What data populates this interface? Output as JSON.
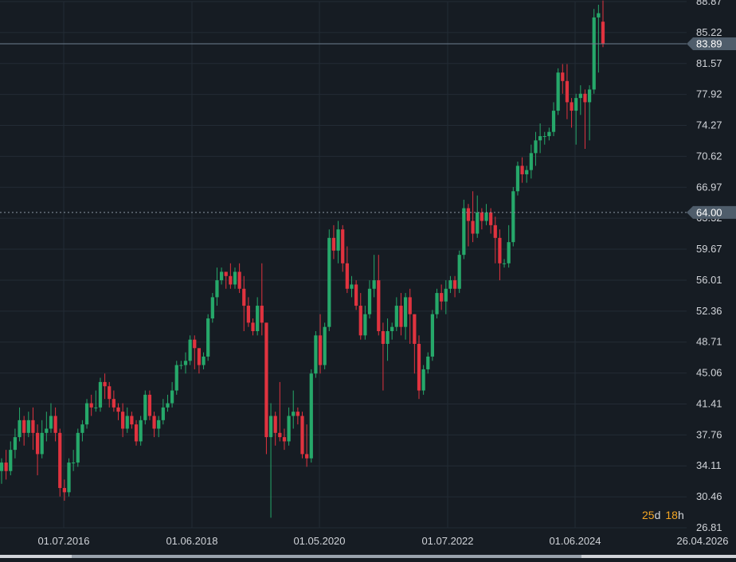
{
  "colors": {
    "background": "#161c23",
    "grid": "#232b35",
    "axis_text": "#d1d4d9",
    "bull": "#26a86a",
    "bear": "#e0333f",
    "last_price_line": "#6d7f8f",
    "crosshair_line": "#8a96a3",
    "label_bg": "#4f5d6b",
    "countdown": "#f5a623"
  },
  "countdown": {
    "days_value": "25",
    "days_unit": "d",
    "hours_value": "18",
    "hours_unit": "h"
  },
  "chart_data": {
    "type": "candlestick",
    "ylim": [
      26.81,
      88.87
    ],
    "y_ticks": [
      "88.87",
      "85.22",
      "81.57",
      "77.92",
      "74.27",
      "70.62",
      "66.97",
      "63.32",
      "59.67",
      "56.01",
      "52.36",
      "48.71",
      "45.06",
      "41.41",
      "37.76",
      "34.11",
      "30.46",
      "26.81"
    ],
    "x_ticks": [
      "01.07.2016",
      "01.06.2018",
      "01.05.2020",
      "01.07.2022",
      "01.06.2024",
      "26.04.2026"
    ],
    "last_price": 83.89,
    "last_price_label": "83.89",
    "crosshair_price": 64.0,
    "crosshair_label": "64.00",
    "grid": true,
    "candles": [
      [
        33.5,
        34.5,
        32.0,
        35.0
      ],
      [
        34.5,
        33.5,
        32.5,
        36.0
      ],
      [
        33.5,
        36.0,
        33.0,
        37.0
      ],
      [
        36.0,
        37.5,
        35.0,
        38.5
      ],
      [
        37.5,
        39.5,
        37.0,
        41.0
      ],
      [
        39.5,
        38.0,
        36.5,
        40.0
      ],
      [
        38.0,
        39.5,
        37.5,
        40.5
      ],
      [
        39.5,
        38.0,
        36.0,
        41.0
      ],
      [
        38.0,
        35.5,
        33.0,
        39.0
      ],
      [
        35.5,
        38.0,
        35.0,
        39.5
      ],
      [
        38.0,
        38.5,
        37.0,
        40.5
      ],
      [
        38.5,
        40.0,
        38.0,
        41.5
      ],
      [
        40.0,
        38.0,
        37.0,
        41.0
      ],
      [
        38.0,
        31.5,
        30.5,
        38.5
      ],
      [
        31.5,
        31.0,
        30.0,
        32.5
      ],
      [
        31.0,
        34.5,
        30.5,
        35.0
      ],
      [
        34.5,
        34.5,
        33.5,
        36.0
      ],
      [
        34.5,
        38.0,
        34.0,
        38.5
      ],
      [
        38.0,
        39.0,
        37.0,
        39.5
      ],
      [
        39.0,
        41.5,
        38.5,
        42.0
      ],
      [
        41.5,
        41.0,
        40.0,
        42.5
      ],
      [
        41.0,
        41.0,
        40.5,
        43.0
      ],
      [
        41.0,
        44.0,
        40.5,
        44.5
      ],
      [
        44.0,
        43.5,
        42.0,
        45.0
      ],
      [
        43.5,
        42.0,
        41.0,
        44.0
      ],
      [
        42.0,
        41.0,
        40.5,
        43.0
      ],
      [
        41.0,
        40.5,
        39.5,
        41.5
      ],
      [
        40.5,
        38.5,
        37.5,
        41.5
      ],
      [
        38.5,
        40.0,
        38.0,
        41.0
      ],
      [
        40.0,
        39.0,
        38.5,
        40.5
      ],
      [
        39.0,
        37.0,
        36.5,
        39.5
      ],
      [
        37.0,
        39.5,
        36.5,
        40.0
      ],
      [
        39.5,
        42.5,
        39.0,
        43.0
      ],
      [
        42.5,
        40.0,
        39.5,
        43.0
      ],
      [
        40.0,
        38.5,
        37.5,
        40.5
      ],
      [
        38.5,
        39.5,
        37.5,
        40.0
      ],
      [
        39.5,
        41.0,
        39.0,
        42.0
      ],
      [
        41.0,
        41.5,
        40.5,
        42.5
      ],
      [
        41.5,
        43.0,
        41.0,
        44.0
      ],
      [
        43.0,
        46.0,
        42.5,
        46.5
      ],
      [
        46.0,
        46.0,
        45.5,
        46.5
      ],
      [
        46.0,
        46.5,
        45.0,
        47.5
      ],
      [
        46.5,
        49.0,
        46.0,
        49.5
      ],
      [
        49.0,
        48.0,
        45.5,
        49.5
      ],
      [
        48.0,
        46.0,
        45.0,
        47.5
      ],
      [
        46.0,
        47.0,
        45.5,
        47.5
      ],
      [
        47.0,
        51.5,
        46.5,
        52.0
      ],
      [
        51.5,
        54.0,
        51.0,
        54.5
      ],
      [
        54.0,
        56.0,
        53.0,
        57.5
      ],
      [
        56.0,
        57.0,
        55.5,
        57.5
      ],
      [
        57.0,
        56.5,
        55.0,
        57.0
      ],
      [
        56.5,
        55.5,
        55.0,
        58.0
      ],
      [
        55.5,
        57.0,
        55.0,
        57.5
      ],
      [
        57.0,
        55.0,
        54.5,
        58.0
      ],
      [
        55.0,
        53.0,
        50.0,
        56.5
      ],
      [
        53.0,
        51.0,
        50.5,
        54.0
      ],
      [
        51.0,
        50.0,
        49.5,
        51.5
      ],
      [
        50.0,
        53.0,
        49.5,
        54.0
      ],
      [
        53.0,
        51.0,
        49.5,
        58.0
      ],
      [
        51.0,
        37.5,
        35.5,
        51.0
      ],
      [
        37.5,
        40.0,
        28.0,
        41.5
      ],
      [
        40.0,
        38.0,
        36.5,
        40.5
      ],
      [
        38.0,
        37.5,
        37.0,
        44.0
      ],
      [
        37.5,
        37.0,
        36.0,
        38.5
      ],
      [
        37.0,
        40.0,
        36.5,
        41.0
      ],
      [
        40.0,
        40.5,
        38.5,
        43.0
      ],
      [
        40.5,
        40.0,
        39.0,
        41.0
      ],
      [
        40.0,
        35.5,
        35.0,
        40.5
      ],
      [
        35.5,
        35.0,
        34.0,
        39.0
      ],
      [
        35.0,
        45.0,
        34.5,
        45.5
      ],
      [
        45.0,
        49.5,
        44.5,
        50.0
      ],
      [
        49.5,
        46.0,
        45.0,
        52.0
      ],
      [
        46.0,
        50.5,
        45.5,
        51.0
      ],
      [
        50.5,
        61.0,
        50.0,
        62.0
      ],
      [
        61.0,
        59.5,
        58.5,
        62.5
      ],
      [
        59.5,
        62.0,
        58.0,
        63.0
      ],
      [
        62.0,
        58.0,
        57.0,
        62.5
      ],
      [
        58.0,
        55.0,
        54.5,
        60.0
      ],
      [
        55.0,
        55.5,
        54.0,
        56.5
      ],
      [
        55.5,
        53.0,
        52.5,
        56.0
      ],
      [
        53.0,
        49.5,
        49.0,
        54.5
      ],
      [
        49.5,
        52.0,
        49.0,
        53.0
      ],
      [
        52.0,
        55.0,
        51.5,
        56.0
      ],
      [
        55.0,
        56.0,
        54.0,
        59.0
      ],
      [
        56.0,
        50.0,
        49.5,
        59.0
      ],
      [
        50.0,
        48.5,
        43.0,
        51.0
      ],
      [
        48.5,
        50.0,
        46.5,
        51.5
      ],
      [
        50.0,
        50.5,
        49.0,
        51.0
      ],
      [
        50.5,
        53.0,
        50.0,
        54.0
      ],
      [
        53.0,
        50.5,
        49.5,
        54.5
      ],
      [
        50.5,
        54.0,
        49.0,
        54.5
      ],
      [
        54.0,
        52.0,
        48.5,
        55.0
      ],
      [
        52.0,
        48.5,
        45.0,
        52.0
      ],
      [
        48.5,
        43.0,
        42.0,
        49.5
      ],
      [
        43.0,
        45.5,
        42.5,
        46.0
      ],
      [
        45.5,
        47.0,
        45.0,
        47.5
      ],
      [
        47.0,
        52.0,
        46.5,
        52.5
      ],
      [
        52.0,
        54.5,
        51.5,
        55.0
      ],
      [
        54.5,
        53.5,
        52.5,
        55.5
      ],
      [
        53.5,
        55.0,
        52.0,
        56.0
      ],
      [
        55.0,
        56.0,
        54.5,
        56.5
      ],
      [
        56.0,
        55.0,
        54.0,
        56.5
      ],
      [
        55.0,
        59.0,
        54.5,
        59.5
      ],
      [
        59.0,
        64.5,
        58.5,
        65.5
      ],
      [
        64.5,
        63.0,
        60.0,
        65.0
      ],
      [
        63.0,
        61.5,
        60.5,
        66.5
      ],
      [
        61.5,
        64.0,
        61.0,
        66.0
      ],
      [
        64.0,
        63.0,
        62.0,
        64.5
      ],
      [
        63.0,
        64.0,
        62.5,
        65.0
      ],
      [
        64.0,
        62.5,
        61.5,
        64.5
      ],
      [
        62.5,
        61.0,
        58.0,
        63.5
      ],
      [
        61.0,
        58.0,
        56.0,
        62.0
      ],
      [
        58.0,
        58.0,
        57.5,
        58.5
      ],
      [
        58.0,
        60.5,
        57.5,
        62.5
      ],
      [
        60.5,
        66.5,
        60.0,
        67.0
      ],
      [
        66.5,
        69.5,
        66.0,
        70.0
      ],
      [
        69.5,
        68.5,
        67.5,
        70.5
      ],
      [
        68.5,
        69.0,
        67.5,
        69.5
      ],
      [
        69.0,
        71.0,
        68.0,
        72.0
      ],
      [
        71.0,
        72.5,
        69.5,
        73.5
      ],
      [
        72.5,
        73.0,
        71.0,
        74.5
      ],
      [
        73.0,
        73.0,
        72.0,
        73.5
      ],
      [
        73.0,
        73.5,
        72.5,
        74.0
      ],
      [
        73.5,
        76.0,
        73.0,
        77.0
      ],
      [
        76.0,
        80.5,
        75.5,
        81.0
      ],
      [
        80.5,
        79.5,
        78.0,
        81.5
      ],
      [
        79.5,
        77.0,
        75.0,
        81.5
      ],
      [
        77.0,
        76.0,
        74.0,
        77.5
      ],
      [
        76.0,
        77.5,
        72.0,
        78.0
      ],
      [
        77.5,
        78.0,
        75.5,
        79.0
      ],
      [
        78.0,
        77.0,
        71.5,
        78.5
      ],
      [
        77.0,
        78.5,
        72.5,
        79.0
      ],
      [
        78.5,
        87.0,
        78.0,
        88.0
      ],
      [
        87.0,
        87.5,
        80.5,
        88.5
      ],
      [
        86.5,
        83.89,
        83.5,
        89.0
      ]
    ]
  }
}
